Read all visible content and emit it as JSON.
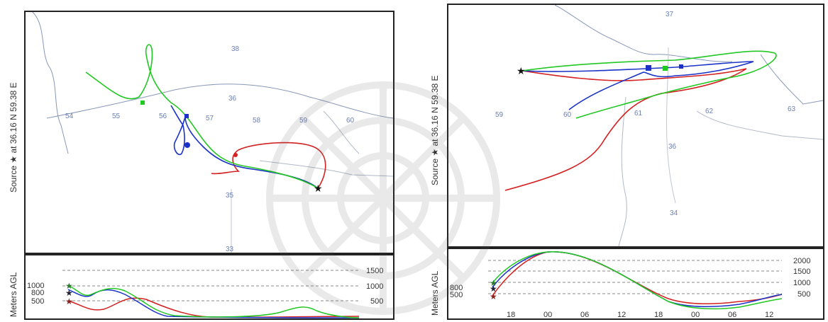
{
  "source_label": "Source ★ at 36.16 N 59.38 E",
  "height_axis_label": "Meters AGL",
  "chart_data": [
    {
      "type": "line",
      "subtype": "backward-trajectory-map",
      "source": {
        "lat": 36.16,
        "lon": 59.38
      },
      "map_grid_labels": [
        "54",
        "55",
        "56",
        "57",
        "58",
        "59",
        "60",
        "38",
        "36",
        "35",
        "33"
      ],
      "series": [
        {
          "color": "#d42020",
          "start_height_m": 500
        },
        {
          "color": "#1a32c8",
          "start_height_m": 800
        },
        {
          "color": "#22c822",
          "start_height_m": 1000
        }
      ],
      "height_panel": {
        "start_labels": [
          "1000",
          "800",
          "500"
        ],
        "levels": [
          "1500",
          "1000",
          "500"
        ],
        "x_ticks": [
          "",
          "",
          "",
          "",
          "",
          "",
          "",
          "",
          ""
        ]
      }
    },
    {
      "type": "line",
      "subtype": "backward-trajectory-map",
      "source": {
        "lat": 36.16,
        "lon": 59.38
      },
      "map_grid_labels": [
        "59",
        "60",
        "61",
        "62",
        "63",
        "37",
        "36",
        "34"
      ],
      "series": [
        {
          "color": "#d42020",
          "start_height_m": 500
        },
        {
          "color": "#1a32c8",
          "start_height_m": 800
        },
        {
          "color": "#22c822",
          "start_height_m": 1000
        }
      ],
      "height_panel": {
        "start_labels": [
          "800",
          "500"
        ],
        "levels": [
          "2000",
          "1500",
          "1000",
          "500"
        ],
        "x_ticks": [
          "18",
          "00",
          "06",
          "12",
          "18",
          "00",
          "06",
          "12"
        ]
      }
    }
  ]
}
